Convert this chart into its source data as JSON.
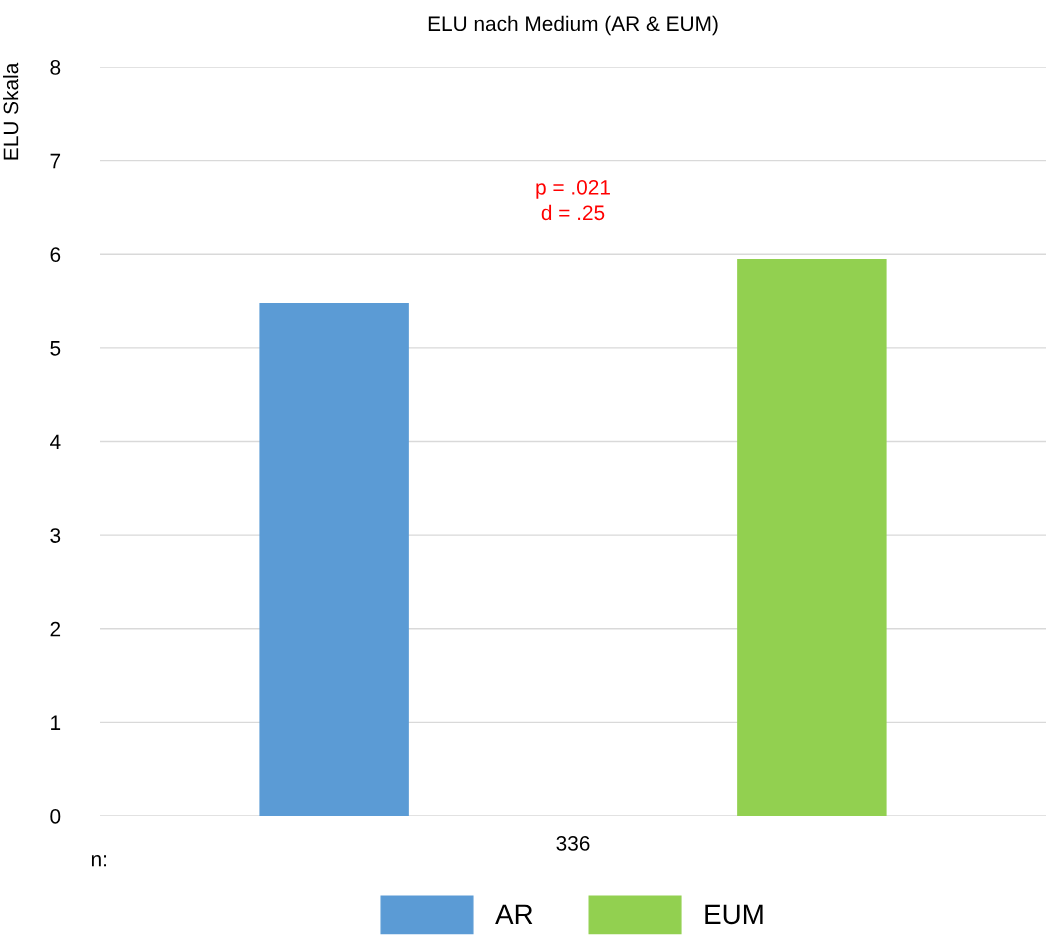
{
  "chart_data": {
    "type": "bar",
    "title": "ELU nach Medium (AR & EUM)",
    "ylabel": "ELU Skala",
    "categories": [
      "336"
    ],
    "series": [
      {
        "name": "AR",
        "color": "#5b9bd5",
        "values": [
          5.48
        ]
      },
      {
        "name": "EUM",
        "color": "#92d050",
        "values": [
          5.95
        ]
      }
    ],
    "ylim": [
      0,
      8
    ],
    "yticks": [
      0,
      1,
      2,
      3,
      4,
      5,
      6,
      7,
      8
    ],
    "grid": "y",
    "legend": "bottom",
    "annotations": [
      "n:",
      "p = .021\nd = .25"
    ]
  }
}
